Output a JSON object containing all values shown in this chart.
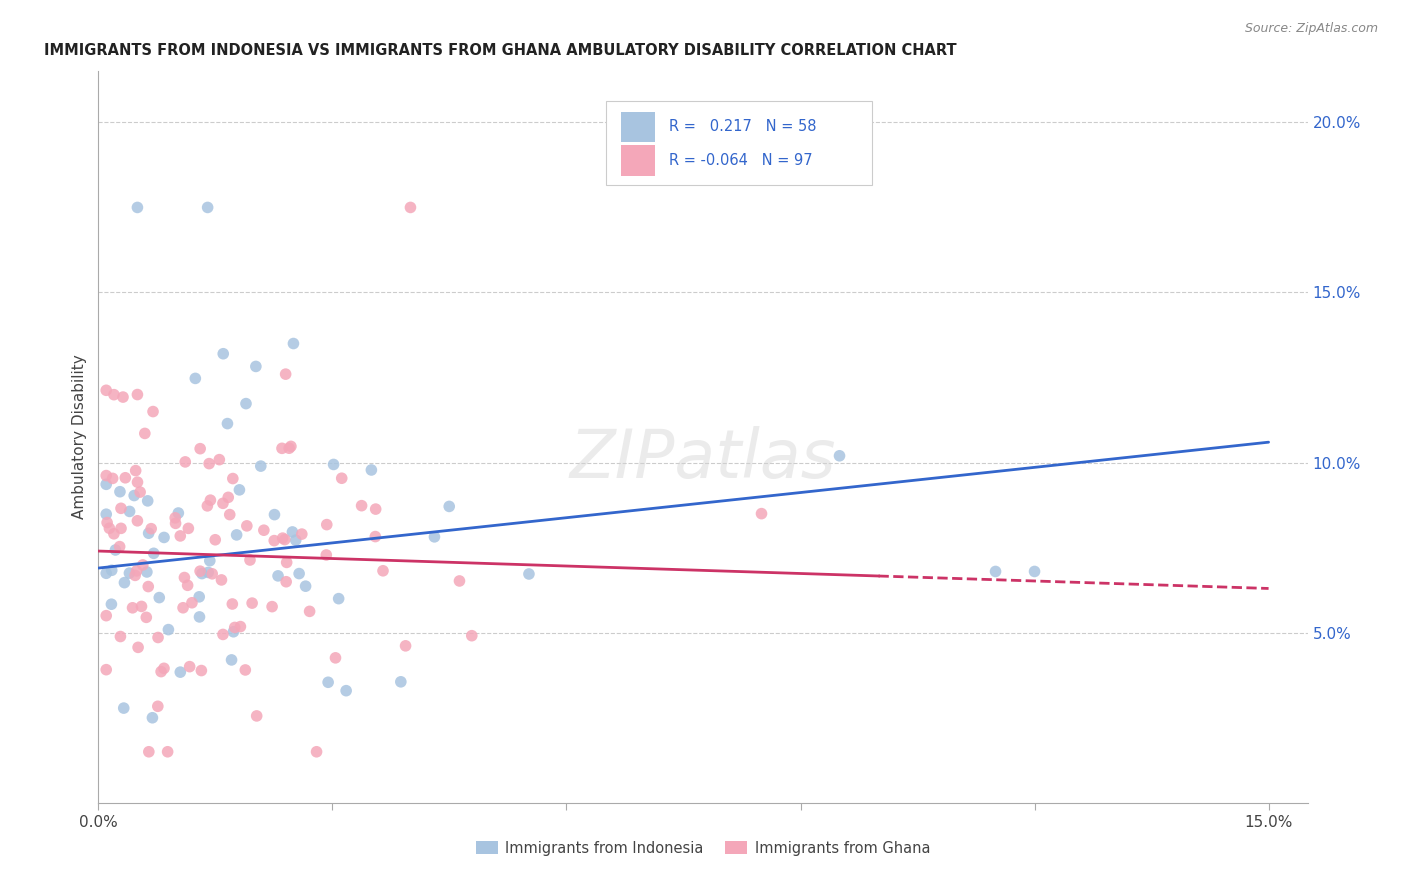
{
  "title": "IMMIGRANTS FROM INDONESIA VS IMMIGRANTS FROM GHANA AMBULATORY DISABILITY CORRELATION CHART",
  "source": "Source: ZipAtlas.com",
  "ylabel": "Ambulatory Disability",
  "xlim": [
    0.0,
    0.155
  ],
  "ylim": [
    0.0,
    0.215
  ],
  "xtick_positions": [
    0.0,
    0.03,
    0.06,
    0.09,
    0.12,
    0.15
  ],
  "xtick_labels": [
    "0.0%",
    "",
    "",
    "",
    "",
    "15.0%"
  ],
  "ytick_positions": [
    0.05,
    0.1,
    0.15,
    0.2
  ],
  "ytick_labels": [
    "5.0%",
    "10.0%",
    "15.0%",
    "20.0%"
  ],
  "r_indonesia": 0.217,
  "n_indonesia": 58,
  "r_ghana": -0.064,
  "n_ghana": 97,
  "color_indonesia": "#a8c4e0",
  "color_ghana": "#f4a7b9",
  "line_color_indonesia": "#3366cc",
  "line_color_ghana": "#cc3366",
  "watermark": "ZIPatlas",
  "line_indo_x0": 0.0,
  "line_indo_x1": 0.15,
  "line_indo_y0": 0.069,
  "line_indo_y1": 0.106,
  "line_ghana_x0": 0.0,
  "line_ghana_x1": 0.15,
  "line_ghana_y0": 0.074,
  "line_ghana_y1": 0.063
}
